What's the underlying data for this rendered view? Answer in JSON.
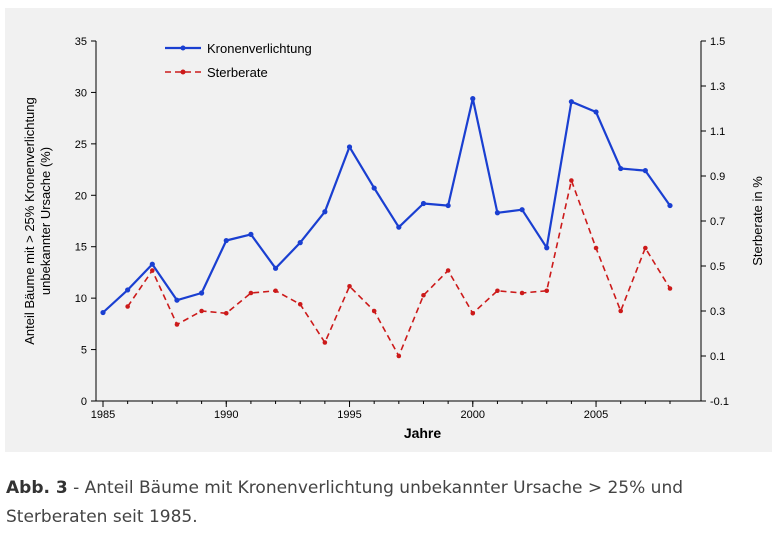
{
  "chart_data": {
    "type": "line",
    "xlabel": "Jahre",
    "ylabel_left": "Anteil Bäume mit > 25% Kronenverlichtung unbekannter Ursache (%)",
    "ylabel_right": "Sterberate in %",
    "xlim": [
      1985,
      2008
    ],
    "x_ticks": [
      1985,
      1990,
      1995,
      2000,
      2005
    ],
    "ylim_left": [
      0,
      35
    ],
    "y_ticks_left": [
      0,
      5,
      10,
      15,
      20,
      25,
      30,
      35
    ],
    "ylim_right": [
      -0.1,
      1.5
    ],
    "y_ticks_right": [
      "-0.1",
      "0.1",
      "0.3",
      "0.5",
      "0.7",
      "0.9",
      "1.1",
      "1.3",
      "1.5"
    ],
    "grid": false,
    "legend_position": "top-left",
    "series": [
      {
        "name": "Kronenverlichtung",
        "axis": "left",
        "color": "#1a3fd1",
        "style": "solid",
        "x": [
          1985,
          1986,
          1987,
          1988,
          1989,
          1990,
          1991,
          1992,
          1993,
          1994,
          1995,
          1996,
          1997,
          1998,
          1999,
          2000,
          2001,
          2002,
          2003,
          2004,
          2005,
          2006,
          2007,
          2008
        ],
        "values": [
          8.6,
          10.8,
          13.3,
          9.8,
          10.5,
          15.6,
          16.2,
          12.9,
          15.4,
          18.4,
          24.7,
          20.7,
          16.9,
          19.2,
          19.0,
          29.4,
          18.3,
          18.6,
          14.9,
          29.1,
          28.1,
          22.6,
          22.4,
          19.0
        ]
      },
      {
        "name": "Sterberate",
        "axis": "right",
        "color": "#cc1a1a",
        "style": "dashed",
        "x": [
          1986,
          1987,
          1988,
          1989,
          1990,
          1991,
          1992,
          1993,
          1994,
          1995,
          1996,
          1997,
          1998,
          1999,
          2000,
          2001,
          2002,
          2003,
          2004,
          2005,
          2006,
          2007,
          2008
        ],
        "values": [
          0.32,
          0.48,
          0.24,
          0.3,
          0.29,
          0.38,
          0.39,
          0.33,
          0.16,
          0.41,
          0.3,
          0.1,
          0.37,
          0.48,
          0.29,
          0.39,
          0.38,
          0.39,
          0.88,
          0.58,
          0.3,
          0.58,
          0.4
        ]
      }
    ]
  },
  "caption": {
    "label": "Abb. 3",
    "text": " - Anteil Bäume mit Kronenverlichtung unbekannter Ursache > 25% und Sterberaten seit 1985."
  }
}
